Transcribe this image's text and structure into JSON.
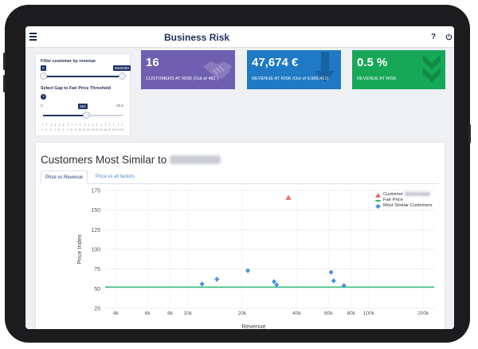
{
  "app": {
    "title": "Business Risk",
    "help_label": "?",
    "menu_icon": "hamburger-menu-icon",
    "power_icon": "power-icon"
  },
  "filters": {
    "revenue_label": "Filter customer by revenue",
    "revenue_min": "0",
    "revenue_max": "5000000",
    "revenue_level": 1.0,
    "gap_label": "Select Gap to Fair Price Threshold",
    "gap_info": "?",
    "gap_min": "0",
    "gap_max": "20.6",
    "gap_value": "152",
    "gap_level": 0.55,
    "gap_ticks": [
      "1",
      "2",
      "3",
      "4",
      "5",
      "6",
      "7",
      "8",
      "9",
      "10",
      "11",
      "12",
      "13",
      "14",
      "15",
      "16",
      "17",
      "18",
      "19",
      "20"
    ]
  },
  "kpis": [
    {
      "value": "16",
      "label": "CUSTOMERS AT RISK (Out of 481 )",
      "color": "#6f5fb0",
      "icon": "handshake-icon"
    },
    {
      "value": "47,674 €",
      "label": "REVENUE AT RISK (Out of 9,956,453)",
      "color": "#1f79c4",
      "icon": "down-arrow-icon"
    },
    {
      "value": "0.5 %",
      "label": "REVENUE AT RISK",
      "color": "#16a857",
      "icon": "double-chevron-down-icon"
    }
  ],
  "card": {
    "title": "Customers Most Similar to",
    "tabs": [
      {
        "label": "Price vs Revenue",
        "active": true
      },
      {
        "label": "Price vs all factors",
        "active": false
      }
    ]
  },
  "chart_data": {
    "type": "scatter",
    "xlabel": "Revenue",
    "ylabel": "Price Index",
    "x_scale": "log",
    "xlim": [
      3500,
      230000
    ],
    "ylim": [
      25,
      175
    ],
    "x_ticks": [
      {
        "v": 4000,
        "l": "4k"
      },
      {
        "v": 6000,
        "l": "6k"
      },
      {
        "v": 8000,
        "l": "8k"
      },
      {
        "v": 10000,
        "l": "10k"
      },
      {
        "v": 20000,
        "l": "20k"
      },
      {
        "v": 40000,
        "l": "40k"
      },
      {
        "v": 60000,
        "l": "60k"
      },
      {
        "v": 80000,
        "l": "80k"
      },
      {
        "v": 100000,
        "l": "100k"
      },
      {
        "v": 200000,
        "l": "200k"
      }
    ],
    "y_ticks": [
      25,
      50,
      75,
      100,
      125,
      150,
      175
    ],
    "series": [
      {
        "name": "Customer",
        "marker": "triangle",
        "color": "#f26b6b",
        "points": [
          [
            36000,
            166
          ]
        ]
      },
      {
        "name": "Fair Price",
        "marker": "line",
        "color": "#22b573",
        "points": [
          [
            3500,
            52
          ],
          [
            230000,
            52
          ]
        ]
      },
      {
        "name": "Most Similar Customers",
        "marker": "diamond",
        "color": "#4a90e2",
        "points": [
          [
            12000,
            56
          ],
          [
            14500,
            62
          ],
          [
            21500,
            73
          ],
          [
            30000,
            59
          ],
          [
            31000,
            55
          ],
          [
            62000,
            71
          ],
          [
            64000,
            60
          ],
          [
            73000,
            54
          ]
        ]
      }
    ],
    "grid": true,
    "legend": "top-right"
  }
}
